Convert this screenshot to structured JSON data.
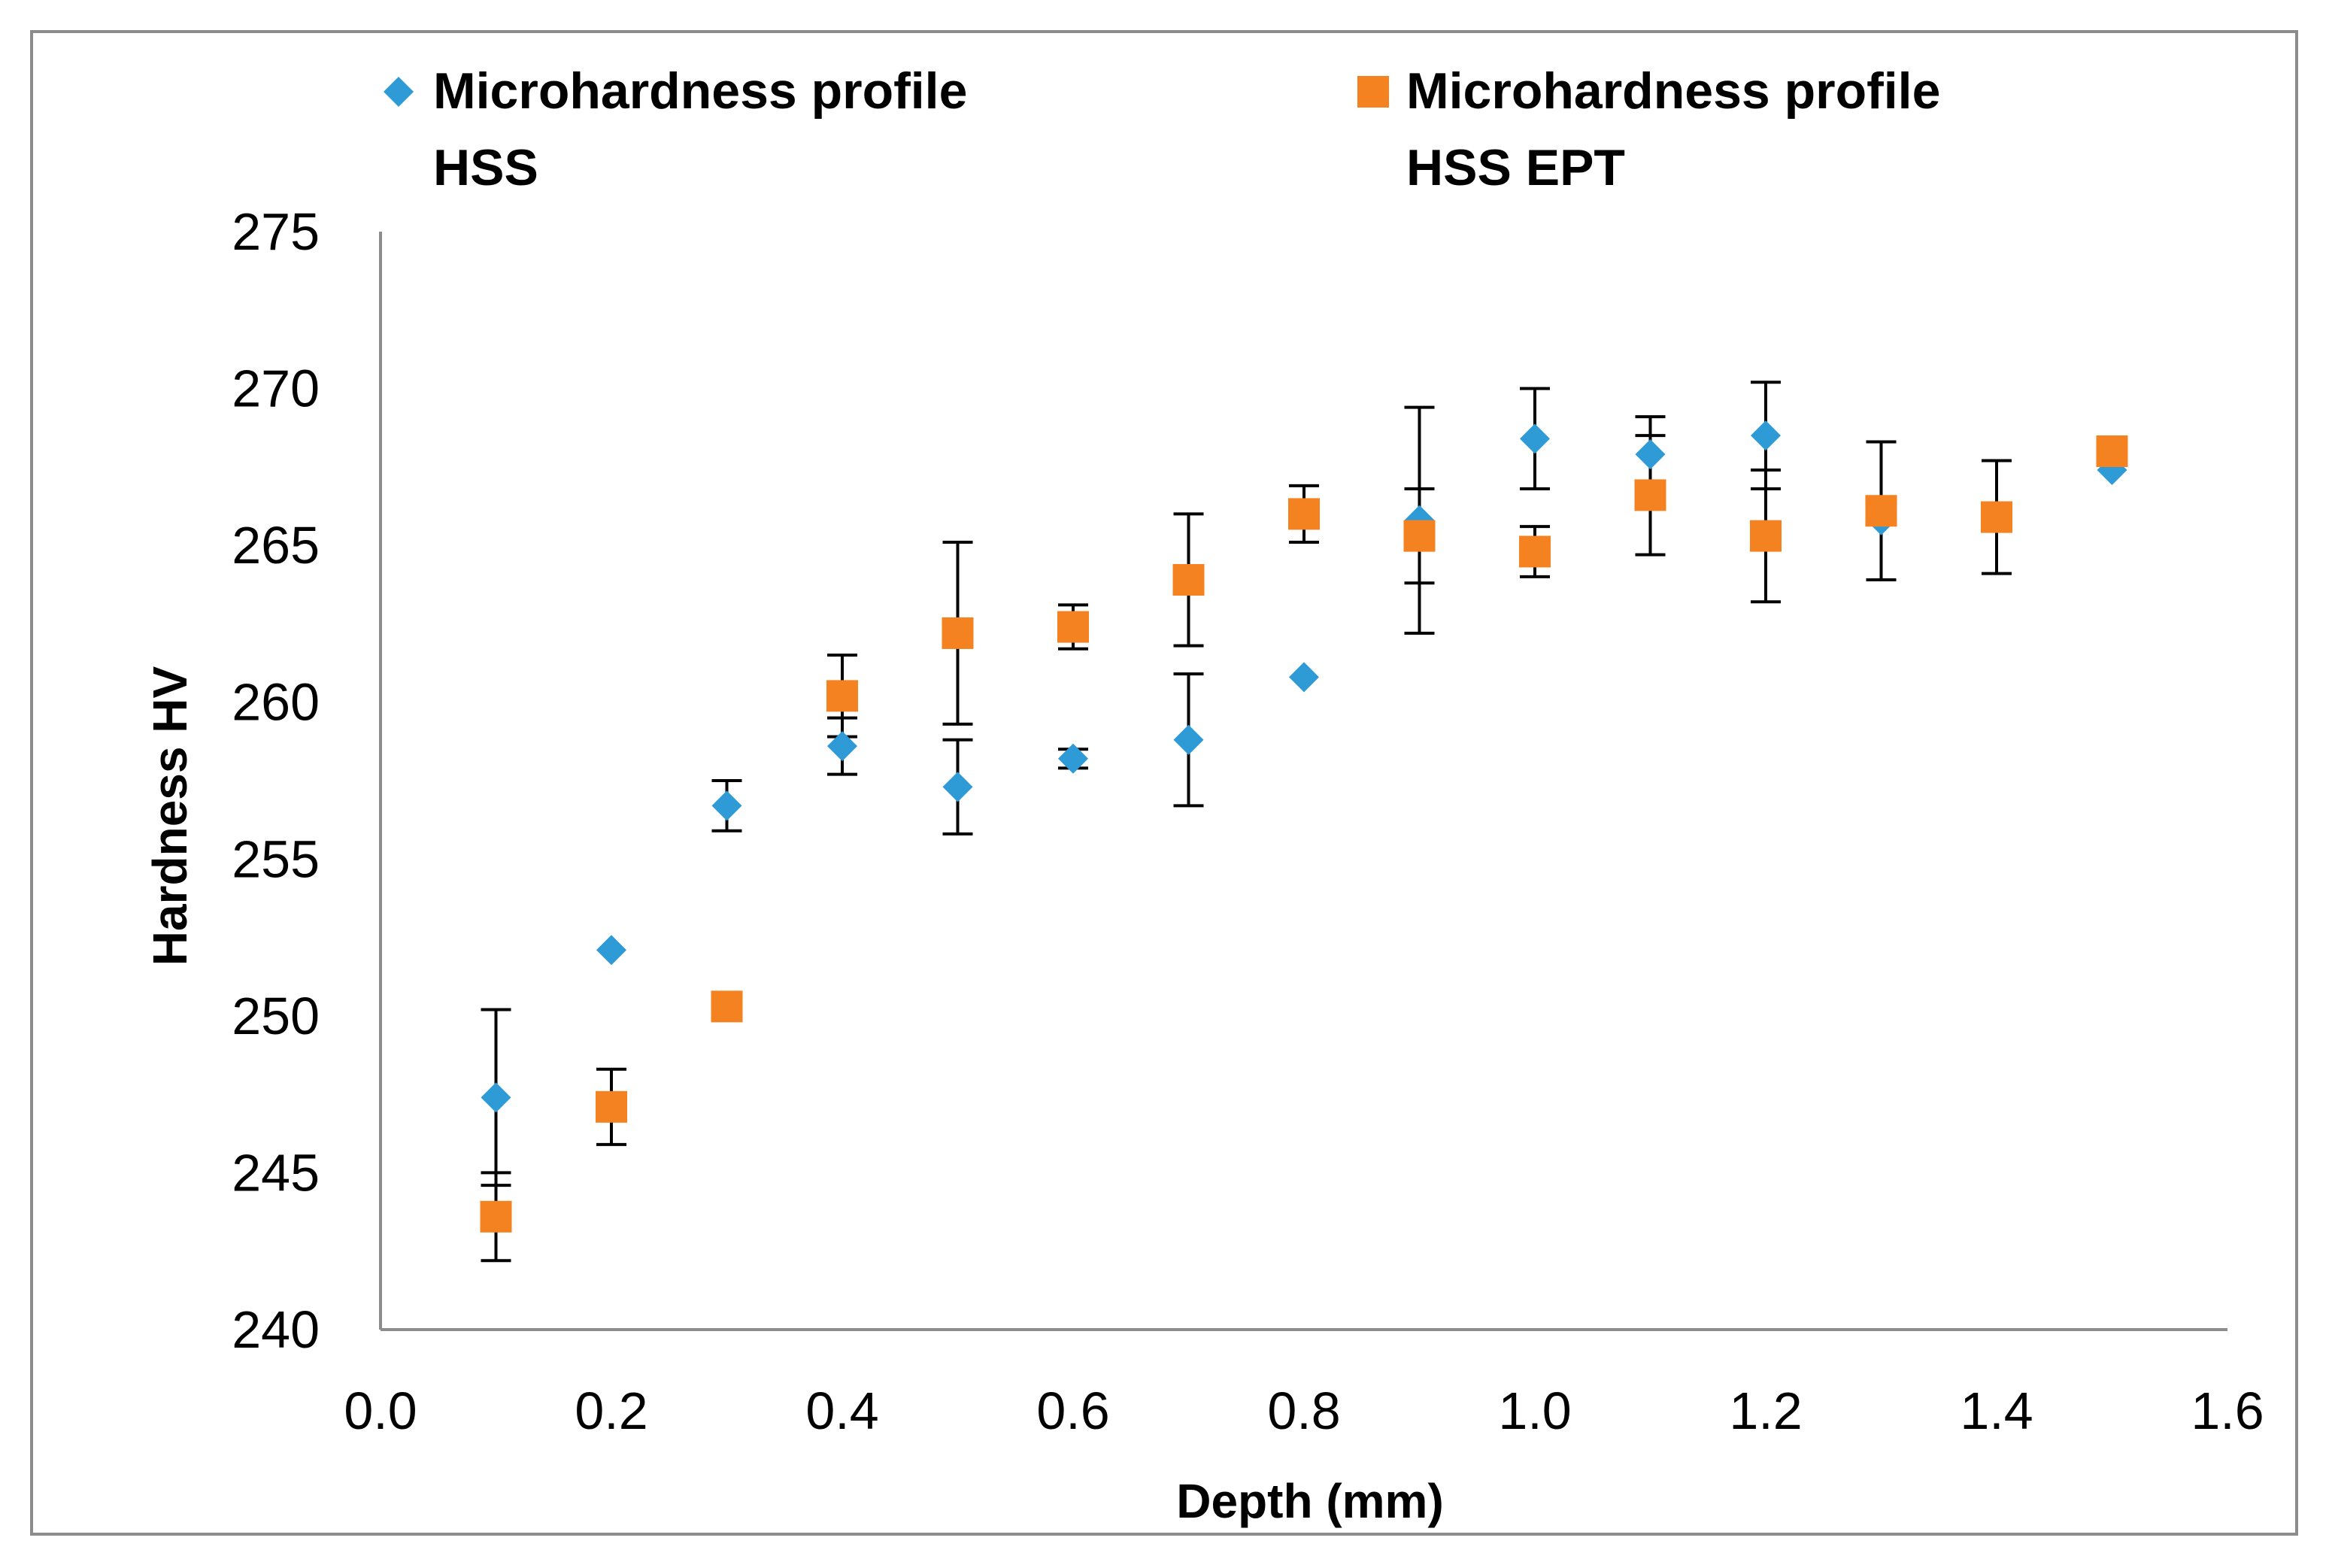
{
  "chart_data": {
    "type": "scatter",
    "title": "",
    "xlabel": "Depth (mm)",
    "ylabel": "Hardness HV",
    "xlim": [
      0.0,
      1.6
    ],
    "ylim": [
      240,
      275
    ],
    "xticks": [
      "0.0",
      "0.2",
      "0.4",
      "0.6",
      "0.8",
      "1.0",
      "1.2",
      "1.4",
      "1.6"
    ],
    "yticks": [
      "240",
      "245",
      "250",
      "255",
      "260",
      "265",
      "270",
      "275"
    ],
    "grid": false,
    "legend_position": "top",
    "series": [
      {
        "name": "Microhardness profile HSS",
        "legend_lines": [
          "Microhardness profile",
          "HSS"
        ],
        "marker": "diamond",
        "color": "#2E9BD6",
        "points": [
          {
            "x": 0.1,
            "y": 247.4,
            "err": 2.8
          },
          {
            "x": 0.2,
            "y": 252.1,
            "err": 0.0
          },
          {
            "x": 0.3,
            "y": 256.7,
            "err": 0.8
          },
          {
            "x": 0.4,
            "y": 258.6,
            "err": 0.9
          },
          {
            "x": 0.5,
            "y": 257.3,
            "err": 1.5
          },
          {
            "x": 0.6,
            "y": 258.2,
            "err": 0.3
          },
          {
            "x": 0.7,
            "y": 258.8,
            "err": 2.1
          },
          {
            "x": 0.8,
            "y": 260.8,
            "err": 0.0
          },
          {
            "x": 0.9,
            "y": 265.8,
            "err": 3.6
          },
          {
            "x": 1.0,
            "y": 268.4,
            "err": 1.6
          },
          {
            "x": 1.1,
            "y": 267.9,
            "err": 1.2
          },
          {
            "x": 1.2,
            "y": 268.5,
            "err": 1.7
          },
          {
            "x": 1.3,
            "y": 265.8,
            "err": 0.0
          },
          {
            "x": 1.4,
            "y": 265.9,
            "err": 0.0
          },
          {
            "x": 1.5,
            "y": 267.4,
            "err": 0.0
          }
        ]
      },
      {
        "name": "Microhardness profile HSS EPT",
        "legend_lines": [
          "Microhardness profile",
          "HSS EPT"
        ],
        "marker": "square",
        "color": "#F58220",
        "points": [
          {
            "x": 0.1,
            "y": 243.6,
            "err": 1.4
          },
          {
            "x": 0.2,
            "y": 247.1,
            "err": 1.2
          },
          {
            "x": 0.3,
            "y": 250.3,
            "err": 0.0
          },
          {
            "x": 0.4,
            "y": 260.2,
            "err": 1.3
          },
          {
            "x": 0.5,
            "y": 262.2,
            "err": 2.9
          },
          {
            "x": 0.6,
            "y": 262.4,
            "err": 0.7
          },
          {
            "x": 0.7,
            "y": 263.9,
            "err": 2.1
          },
          {
            "x": 0.8,
            "y": 266.0,
            "err": 0.9
          },
          {
            "x": 0.9,
            "y": 265.3,
            "err": 1.5
          },
          {
            "x": 1.0,
            "y": 264.8,
            "err": 0.8
          },
          {
            "x": 1.1,
            "y": 266.6,
            "err": 1.9
          },
          {
            "x": 1.2,
            "y": 265.3,
            "err": 2.1
          },
          {
            "x": 1.3,
            "y": 266.1,
            "err": 2.2
          },
          {
            "x": 1.4,
            "y": 265.9,
            "err": 1.8
          },
          {
            "x": 1.5,
            "y": 268.0,
            "err": 0.0
          }
        ]
      }
    ]
  }
}
